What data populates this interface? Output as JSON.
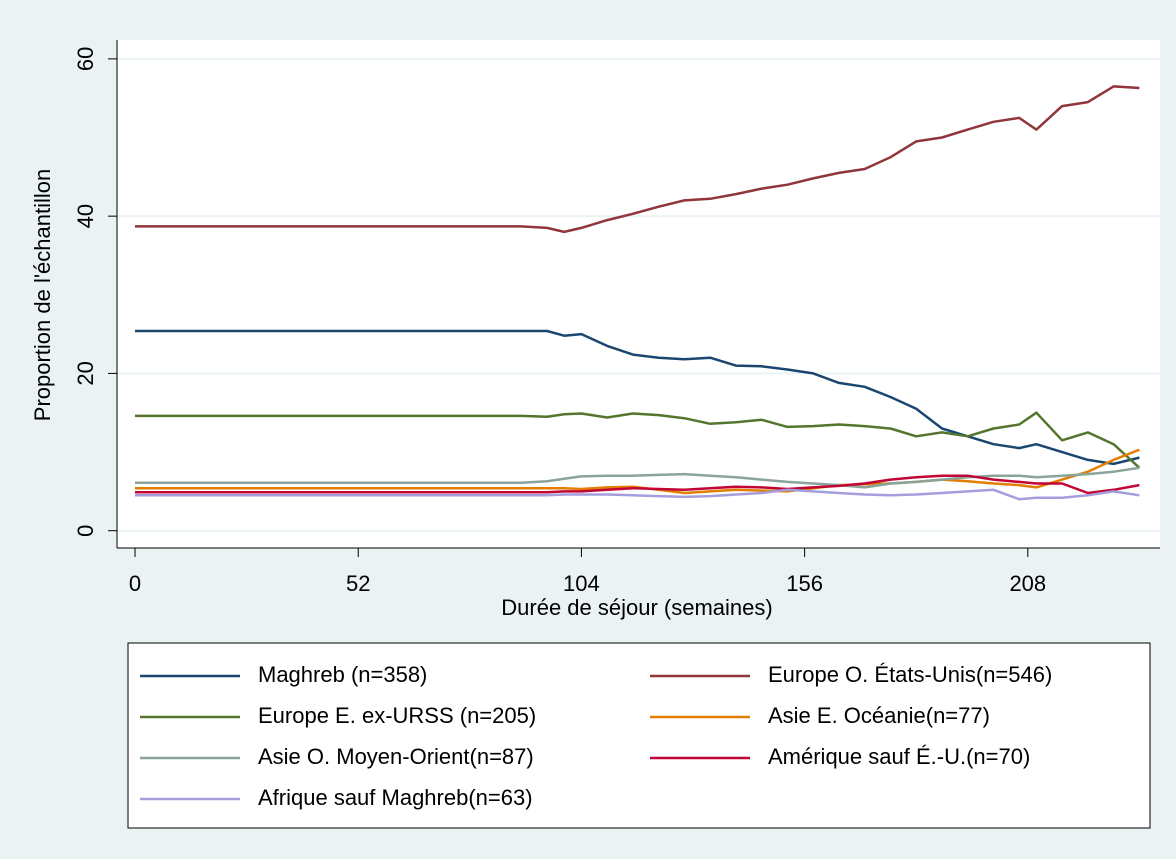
{
  "chart_data": {
    "type": "line",
    "xlabel": "Durée de séjour (semaines)",
    "ylabel": "Proportion de l'échantillon",
    "x": [
      0,
      90,
      96,
      100,
      104,
      110,
      116,
      122,
      128,
      134,
      140,
      146,
      152,
      158,
      164,
      170,
      176,
      182,
      188,
      194,
      200,
      206,
      210,
      216,
      222,
      228,
      234
    ],
    "series": [
      {
        "name": "Maghreb (n=358)",
        "color": "#1a476f",
        "values": [
          25.4,
          25.4,
          25.4,
          24.8,
          25.0,
          23.5,
          22.4,
          22.0,
          21.8,
          22.0,
          21.0,
          20.9,
          20.5,
          20.0,
          18.8,
          18.3,
          17.0,
          15.5,
          13.0,
          12.0,
          11.0,
          10.5,
          11.0,
          10.0,
          9.0,
          8.5,
          9.3
        ]
      },
      {
        "name": "Europe O. États-Unis(n=546)",
        "color": "#90353b",
        "values": [
          38.7,
          38.7,
          38.5,
          38.0,
          38.5,
          39.5,
          40.3,
          41.2,
          42.0,
          42.2,
          42.8,
          43.5,
          44.0,
          44.8,
          45.5,
          46.0,
          47.5,
          49.5,
          50.0,
          51.0,
          52.0,
          52.5,
          51.0,
          54.0,
          54.5,
          56.5,
          56.3
        ]
      },
      {
        "name": "Europe E. ex-URSS (n=205)",
        "color": "#55752f",
        "values": [
          14.6,
          14.6,
          14.5,
          14.8,
          14.9,
          14.4,
          14.9,
          14.7,
          14.3,
          13.6,
          13.8,
          14.1,
          13.2,
          13.3,
          13.5,
          13.3,
          13.0,
          12.0,
          12.5,
          12.0,
          13.0,
          13.5,
          15.0,
          11.5,
          12.5,
          11.0,
          8.0
        ]
      },
      {
        "name": "Asie E. Océanie(n=77)",
        "color": "#e37e00",
        "values": [
          5.4,
          5.4,
          5.4,
          5.4,
          5.3,
          5.5,
          5.6,
          5.2,
          4.8,
          5.0,
          5.2,
          5.1,
          5.0,
          5.4,
          5.8,
          5.9,
          6.0,
          6.2,
          6.5,
          6.3,
          6.0,
          5.8,
          5.5,
          6.5,
          7.5,
          9.0,
          10.3
        ]
      },
      {
        "name": "Asie O. Moyen-Orient(n=87)",
        "color": "#8aa39b",
        "values": [
          6.1,
          6.1,
          6.3,
          6.6,
          6.9,
          7.0,
          7.0,
          7.1,
          7.2,
          7.0,
          6.8,
          6.5,
          6.2,
          6.0,
          5.8,
          5.5,
          6.0,
          6.2,
          6.5,
          6.8,
          7.0,
          7.0,
          6.8,
          7.0,
          7.2,
          7.5,
          8.0
        ]
      },
      {
        "name": "Amérique sauf É.-U.(n=70)",
        "color": "#c10534",
        "values": [
          4.9,
          4.9,
          4.9,
          5.0,
          5.0,
          5.2,
          5.4,
          5.3,
          5.2,
          5.4,
          5.6,
          5.5,
          5.3,
          5.5,
          5.7,
          6.0,
          6.5,
          6.8,
          7.0,
          7.0,
          6.5,
          6.2,
          6.0,
          6.0,
          4.8,
          5.2,
          5.8
        ]
      },
      {
        "name": "Afrique sauf Maghreb(n=63)",
        "color": "#a49fdc",
        "values": [
          4.5,
          4.5,
          4.5,
          4.6,
          4.6,
          4.6,
          4.5,
          4.4,
          4.3,
          4.4,
          4.6,
          4.8,
          5.2,
          5.0,
          4.8,
          4.6,
          4.5,
          4.6,
          4.8,
          5.0,
          5.2,
          4.0,
          4.2,
          4.2,
          4.5,
          5.0,
          4.5
        ]
      }
    ],
    "xlim": [
      -4.2,
      238.8
    ],
    "xticks": [
      0,
      52,
      104,
      156,
      208
    ],
    "ylim": [
      -2.2,
      62.4
    ],
    "yticks": [
      0,
      20,
      40,
      60
    ],
    "grid": true
  }
}
